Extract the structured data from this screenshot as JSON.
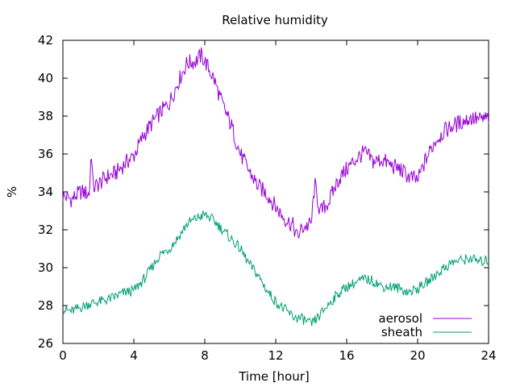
{
  "chart_data": {
    "type": "line",
    "title": "Relative humidity",
    "xlabel": "Time [hour]",
    "ylabel": "%",
    "xlim": [
      0,
      24
    ],
    "ylim": [
      26,
      42
    ],
    "xticks": [
      0,
      4,
      8,
      12,
      16,
      20,
      24
    ],
    "yticks": [
      26,
      28,
      30,
      32,
      34,
      36,
      38,
      40,
      42
    ],
    "grid": false,
    "legend_position": "bottom-right",
    "series": [
      {
        "name": "aerosol",
        "color": "#9400d3",
        "x": [
          0,
          0.5,
          1,
          1.5,
          1.6,
          1.7,
          2,
          2.5,
          3,
          3.5,
          4,
          4.5,
          5,
          5.5,
          6,
          6.5,
          7,
          7.5,
          7.8,
          8,
          8.5,
          9,
          9.5,
          10,
          10.5,
          11,
          11.5,
          12,
          12.5,
          13,
          13.2,
          13.5,
          14,
          14.2,
          14.5,
          15,
          15.5,
          16,
          16.5,
          17,
          17.5,
          18,
          18.5,
          19,
          19.5,
          20,
          20.5,
          21,
          21.5,
          22,
          22.5,
          23,
          23.5,
          24
        ],
        "y": [
          33.8,
          33.6,
          34.0,
          33.9,
          36.4,
          34.2,
          34.4,
          34.8,
          35.0,
          35.5,
          35.9,
          36.9,
          37.6,
          38.2,
          38.7,
          39.8,
          40.8,
          40.9,
          41.2,
          40.9,
          40.0,
          38.6,
          37.5,
          36.0,
          35.1,
          34.3,
          33.9,
          33.2,
          32.6,
          32.2,
          31.6,
          32.1,
          32.3,
          34.4,
          32.9,
          33.5,
          34.6,
          35.2,
          35.7,
          36.1,
          35.6,
          35.7,
          35.4,
          35.2,
          34.8,
          34.6,
          35.8,
          36.7,
          37.2,
          37.5,
          37.7,
          37.9,
          37.8,
          37.9
        ]
      },
      {
        "name": "sheath",
        "color": "#009e73",
        "x": [
          0,
          0.5,
          1,
          1.5,
          2,
          2.5,
          3,
          3.5,
          4,
          4.5,
          5,
          5.5,
          6,
          6.5,
          7,
          7.5,
          8,
          8.5,
          9,
          9.5,
          10,
          10.5,
          11,
          11.5,
          12,
          12.5,
          13,
          13.5,
          14,
          14.5,
          15,
          15.5,
          16,
          16.5,
          17,
          17.5,
          18,
          18.5,
          19,
          19.5,
          20,
          20.5,
          21,
          21.5,
          22,
          22.5,
          23,
          23.5,
          24
        ],
        "y": [
          27.8,
          27.7,
          27.9,
          28.1,
          28.2,
          28.3,
          28.5,
          28.7,
          28.8,
          29.3,
          30.0,
          30.7,
          31.0,
          31.6,
          32.3,
          32.6,
          32.8,
          32.5,
          32.0,
          31.5,
          31.0,
          30.2,
          29.6,
          28.8,
          28.2,
          27.8,
          27.4,
          27.3,
          27.0,
          27.5,
          28.1,
          28.6,
          29.0,
          29.2,
          29.4,
          29.3,
          29.0,
          29.0,
          28.9,
          28.7,
          28.9,
          29.2,
          29.6,
          30.0,
          30.3,
          30.4,
          30.5,
          30.3,
          30.4
        ]
      }
    ]
  }
}
